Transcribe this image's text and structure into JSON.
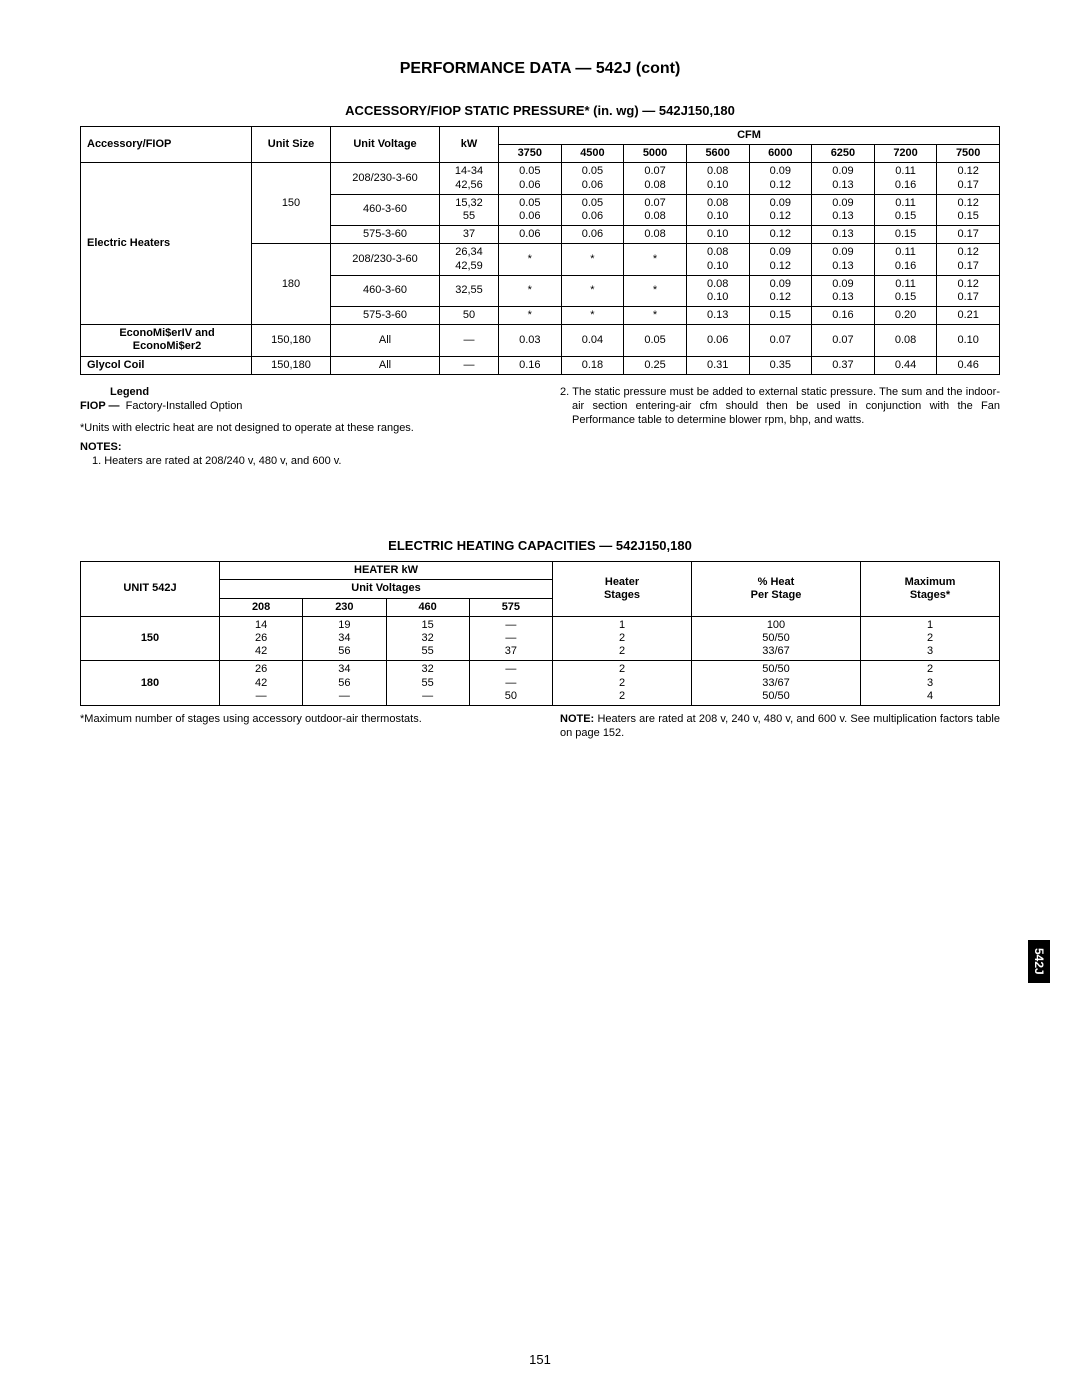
{
  "page": {
    "title": "PERFORMANCE DATA — 542J (cont)",
    "number": "151",
    "side_tab": "542J"
  },
  "table1": {
    "title": "ACCESSORY/FIOP STATIC PRESSURE* (in. wg) — 542J150,180",
    "headers": {
      "accessory": "Accessory/FIOP",
      "unit_size": "Unit Size",
      "unit_voltage": "Unit Voltage",
      "kw": "kW",
      "cfm": "CFM",
      "cfm_cols": [
        "3750",
        "4500",
        "5000",
        "5600",
        "6000",
        "6250",
        "7200",
        "7500"
      ]
    },
    "electric_heaters_label": "Electric Heaters",
    "rows_150": [
      {
        "voltage": "208/230-3-60",
        "kw": "14-34\n42,56",
        "vals": [
          "0.05\n0.06",
          "0.05\n0.06",
          "0.07\n0.08",
          "0.08\n0.10",
          "0.09\n0.12",
          "0.09\n0.13",
          "0.11\n0.16",
          "0.12\n0.17"
        ]
      },
      {
        "voltage": "460-3-60",
        "kw": "15,32\n55",
        "vals": [
          "0.05\n0.06",
          "0.05\n0.06",
          "0.07\n0.08",
          "0.08\n0.10",
          "0.09\n0.12",
          "0.09\n0.13",
          "0.11\n0.15",
          "0.12\n0.15"
        ]
      },
      {
        "voltage": "575-3-60",
        "kw": "37",
        "vals": [
          "0.06",
          "0.06",
          "0.08",
          "0.10",
          "0.12",
          "0.13",
          "0.15",
          "0.17"
        ]
      }
    ],
    "rows_180": [
      {
        "voltage": "208/230-3-60",
        "kw": "26,34\n42,59",
        "vals": [
          "*\n ",
          "*\n ",
          "*\n ",
          "0.08\n0.10",
          "0.09\n0.12",
          "0.09\n0.13",
          "0.11\n0.16",
          "0.12\n0.17"
        ]
      },
      {
        "voltage": "460-3-60",
        "kw": "32,55",
        "vals": [
          "*\n ",
          "*\n ",
          "*\n ",
          "0.08\n0.10",
          "0.09\n0.12",
          "0.09\n0.13",
          "0.11\n0.15",
          "0.12\n0.17"
        ]
      },
      {
        "voltage": "575-3-60",
        "kw": "50",
        "vals": [
          "*",
          "*",
          "*",
          "0.13",
          "0.15",
          "0.16",
          "0.20",
          "0.21"
        ]
      }
    ],
    "econo_label": "EconoMi$erIV and\nEconoMi$er2",
    "econo": {
      "size": "150,180",
      "voltage": "All",
      "kw": "—",
      "vals": [
        "0.03",
        "0.04",
        "0.05",
        "0.06",
        "0.07",
        "0.07",
        "0.08",
        "0.10"
      ]
    },
    "glycol_label": "Glycol Coil",
    "glycol": {
      "size": "150,180",
      "voltage": "All",
      "kw": "—",
      "vals": [
        "0.16",
        "0.18",
        "0.25",
        "0.31",
        "0.35",
        "0.37",
        "0.44",
        "0.46"
      ]
    }
  },
  "notes1": {
    "legend_title": "Legend",
    "fiop_label": "FIOP  —",
    "fiop_text": "Factory-Installed Option",
    "asterisk": "*Units with electric heat are not designed to operate at these ranges.",
    "notes_title": "NOTES:",
    "note1": "1.  Heaters are rated at 208/240 v, 480 v, and 600 v.",
    "note2": "2.  The static pressure must be added to external static pressure. The sum and the indoor-air section entering-air cfm should then be used in conjunction with the Fan Performance table to determine blower rpm, bhp, and watts."
  },
  "table2": {
    "title": "ELECTRIC HEATING CAPACITIES — 542J150,180",
    "headers": {
      "unit": "UNIT 542J",
      "heater_kw": "HEATER kW",
      "unit_voltages": "Unit Voltages",
      "v208": "208",
      "v230": "230",
      "v460": "460",
      "v575": "575",
      "heater_stages": "Heater\nStages",
      "pct_heat": "% Heat\nPer Stage",
      "max_stages": "Maximum\nStages*"
    },
    "rows": [
      {
        "unit": "150",
        "v208": "14\n26\n42",
        "v230": "19\n34\n56",
        "v460": "15\n32\n55",
        "v575": "—\n—\n37",
        "stages": "1\n2\n2",
        "pct": "100\n50/50\n33/67",
        "max": "1\n2\n3"
      },
      {
        "unit": "180",
        "v208": "26\n42\n—",
        "v230": "34\n56\n—",
        "v460": "32\n55\n—",
        "v575": "—\n—\n50",
        "stages": "2\n2\n2",
        "pct": "50/50\n33/67\n50/50",
        "max": "2\n3\n4"
      }
    ],
    "footnote_left": "*Maximum number of stages using accessory outdoor-air thermostats.",
    "footnote_right_label": "NOTE:",
    "footnote_right": "Heaters are rated at 208 v, 240 v, 480 v, and 600 v. See multiplication factors table on page 152."
  }
}
